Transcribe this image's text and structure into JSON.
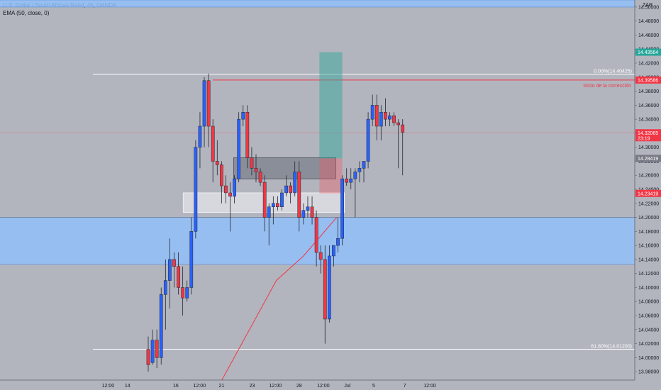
{
  "header": {
    "title": "U.S. Dollar / South African Rand, 4h, OANDA",
    "indicator": "EMA (50, close, 0)"
  },
  "chart_data": {
    "type": "candlestick",
    "title": "U.S. Dollar / South African Rand, 4h, OANDA",
    "currency_label": "ZAR",
    "ylim": [
      13.968,
      14.51
    ],
    "y_ticks": [
      "14.50000",
      "14.48000",
      "14.46000",
      "14.44000",
      "14.42000",
      "14.40000",
      "14.38000",
      "14.36000",
      "14.34000",
      "14.32000",
      "14.30000",
      "14.28000",
      "14.26000",
      "14.24000",
      "14.22000",
      "14.20000",
      "14.18000",
      "14.16000",
      "14.14000",
      "14.12000",
      "14.10000",
      "14.08000",
      "14.06000",
      "14.04000",
      "14.02000",
      "14.00000",
      "13.98000"
    ],
    "x_ticks": [
      "12:00",
      "14",
      "16",
      "12:00",
      "21",
      "23",
      "12:00",
      "28",
      "12:00",
      "Jul",
      "5",
      "7",
      "12:00"
    ],
    "x_tick_index": [
      -9.3,
      -4.8,
      6.4,
      11.9,
      17,
      24.1,
      29.5,
      35,
      40.6,
      46.2,
      52.3,
      59.5,
      65.3
    ],
    "candles": [
      [
        14.012,
        14.03,
        13.99,
        13.98
      ],
      [
        13.993,
        14.04,
        14.025,
        13.99
      ],
      [
        14.025,
        14.04,
        14.0,
        13.985
      ],
      [
        14.0,
        14.1,
        14.09,
        13.99
      ],
      [
        14.09,
        14.14,
        14.11,
        14.04
      ],
      [
        14.11,
        14.17,
        14.14,
        14.07
      ],
      [
        14.14,
        14.15,
        14.13,
        14.1
      ],
      [
        14.13,
        14.15,
        14.1,
        14.09
      ],
      [
        14.1,
        14.13,
        14.085,
        14.06
      ],
      [
        14.085,
        14.11,
        14.1,
        14.08
      ],
      [
        14.1,
        14.2,
        14.18,
        14.09
      ],
      [
        14.18,
        14.31,
        14.3,
        14.17
      ],
      [
        14.3,
        14.35,
        14.33,
        14.27
      ],
      [
        14.33,
        14.4,
        14.395,
        14.3
      ],
      [
        14.395,
        14.405,
        14.33,
        14.3
      ],
      [
        14.33,
        14.34,
        14.28,
        14.25
      ],
      [
        14.28,
        14.31,
        14.275,
        14.26
      ],
      [
        14.275,
        14.28,
        14.245,
        14.22
      ],
      [
        14.245,
        14.26,
        14.235,
        14.22
      ],
      [
        14.235,
        14.25,
        14.23,
        14.18
      ],
      [
        14.23,
        14.26,
        14.255,
        14.22
      ],
      [
        14.255,
        14.35,
        14.34,
        14.25
      ],
      [
        14.34,
        14.36,
        14.35,
        14.33
      ],
      [
        14.35,
        14.36,
        14.285,
        14.27
      ],
      [
        14.285,
        14.3,
        14.27,
        14.26
      ],
      [
        14.27,
        14.29,
        14.265,
        14.25
      ],
      [
        14.265,
        14.27,
        14.25,
        14.245
      ],
      [
        14.25,
        14.26,
        14.2,
        14.18
      ],
      [
        14.2,
        14.22,
        14.215,
        14.16
      ],
      [
        14.215,
        14.23,
        14.22,
        14.19
      ],
      [
        14.22,
        14.23,
        14.215,
        14.21
      ],
      [
        14.215,
        14.24,
        14.235,
        14.21
      ],
      [
        14.235,
        14.26,
        14.245,
        14.23
      ],
      [
        14.245,
        14.25,
        14.235,
        14.22
      ],
      [
        14.235,
        14.28,
        14.265,
        14.23
      ],
      [
        14.265,
        14.28,
        14.2,
        14.18
      ],
      [
        14.2,
        14.22,
        14.21,
        14.19
      ],
      [
        14.21,
        14.23,
        14.215,
        14.2
      ],
      [
        14.215,
        14.23,
        14.2,
        14.19
      ],
      [
        14.2,
        14.21,
        14.15,
        14.13
      ],
      [
        14.15,
        14.16,
        14.14,
        14.12
      ],
      [
        14.14,
        14.16,
        14.055,
        14.02
      ],
      [
        14.055,
        14.16,
        14.145,
        14.05
      ],
      [
        14.145,
        14.16,
        14.16,
        14.13
      ],
      [
        14.16,
        14.2,
        14.17,
        14.15
      ],
      [
        14.17,
        14.26,
        14.255,
        14.16
      ],
      [
        14.255,
        14.27,
        14.25,
        14.245
      ],
      [
        14.25,
        14.27,
        14.255,
        14.24
      ],
      [
        14.255,
        14.27,
        14.265,
        14.2
      ],
      [
        14.265,
        14.28,
        14.27,
        14.25
      ],
      [
        14.27,
        14.28,
        14.28,
        14.25
      ],
      [
        14.28,
        14.35,
        14.34,
        14.27
      ],
      [
        14.34,
        14.375,
        14.36,
        14.33
      ],
      [
        14.36,
        14.375,
        14.33,
        14.31
      ],
      [
        14.33,
        14.36,
        14.35,
        14.31
      ],
      [
        14.35,
        14.37,
        14.34,
        14.33
      ],
      [
        14.34,
        14.35,
        14.345,
        14.33
      ],
      [
        14.345,
        14.35,
        14.335,
        14.33
      ],
      [
        14.335,
        14.34,
        14.332,
        14.27
      ],
      [
        14.332,
        14.34,
        14.3215,
        14.26
      ]
    ],
    "ema50": [
      [
        13.68,
        13.93
      ],
      [
        29.7,
        14.11
      ],
      [
        36,
        14.145
      ],
      [
        43.7,
        14.2
      ]
    ],
    "fib_levels": [
      {
        "label": "0.00%(14.40425)",
        "value": 14.40425
      },
      {
        "label": "61.80%(14.01200)",
        "value": 14.012
      }
    ],
    "zones": [
      {
        "name": "upper-blue-zone",
        "from": 14.5,
        "to": 14.51
      },
      {
        "name": "lower-blue-zone",
        "from": 14.133,
        "to": 14.2
      }
    ],
    "boxes": [
      {
        "name": "gray-supply-box",
        "start": 19.8,
        "end": 43.5,
        "from": 14.255,
        "to": 14.285
      },
      {
        "name": "white-demand-box",
        "start": 8.1,
        "end": 45.5,
        "from": 14.207,
        "to": 14.235
      }
    ],
    "position": {
      "start": 39.7,
      "end": 45,
      "entry": 14.28419,
      "target": 14.43564,
      "stop": 14.23419
    },
    "annotation": {
      "text": "Inicio de la corrección",
      "value": 14.39586
    },
    "price_labels": [
      {
        "value": 14.43564,
        "text": "14.43564",
        "color": "#26a69a"
      },
      {
        "value": 14.39586,
        "text": "14.39586",
        "color": "#f23645"
      },
      {
        "value": 14.32065,
        "text": "14.32065",
        "sub": "23:19",
        "color": "#f23645"
      },
      {
        "value": 14.28419,
        "text": "14.28419",
        "color": "#787b86"
      },
      {
        "value": 14.23419,
        "text": "14.23419",
        "color": "#f23645"
      }
    ],
    "colors": {
      "bull": "#2962ff",
      "bear": "#f23645",
      "ema": "#f23645",
      "blue_zone": "#90bff9",
      "background": "#b2b5be"
    }
  }
}
